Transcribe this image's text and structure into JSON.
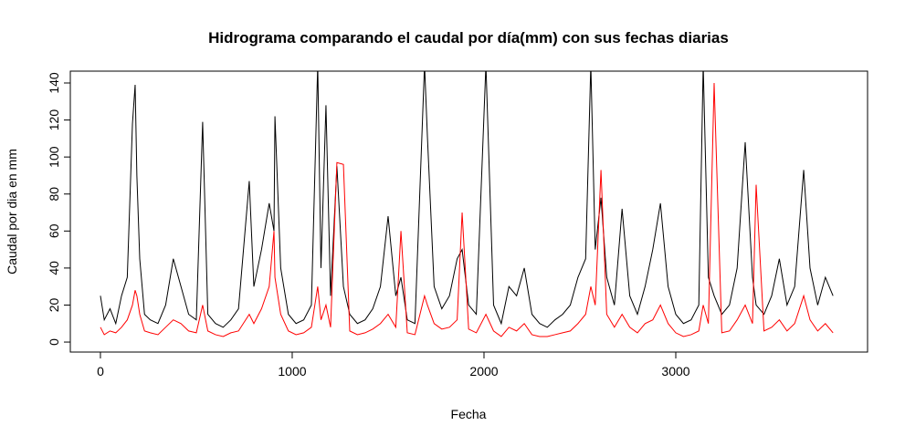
{
  "chart_data": {
    "type": "line",
    "title": "Hidrograma comparando el caudal por día(mm) con sus fechas diarias",
    "x_label": "Fecha",
    "y_label": "Caudal por dia en mm",
    "xlim": [
      -157,
      4000
    ],
    "ylim": [
      -5.4,
      146.4
    ],
    "xticks": [
      0,
      1000,
      2000,
      3000
    ],
    "yticks": [
      0,
      20,
      40,
      60,
      80,
      100,
      120,
      140
    ],
    "x": [
      0,
      20,
      50,
      80,
      110,
      140,
      167,
      181,
      190,
      205,
      230,
      260,
      300,
      340,
      380,
      420,
      460,
      500,
      533,
      560,
      600,
      640,
      680,
      720,
      776,
      800,
      840,
      880,
      905,
      910,
      940,
      980,
      1020,
      1060,
      1100,
      1133,
      1150,
      1176,
      1200,
      1233,
      1267,
      1300,
      1340,
      1380,
      1420,
      1460,
      1500,
      1540,
      1567,
      1600,
      1640,
      1690,
      1705,
      1740,
      1780,
      1820,
      1860,
      1886,
      1920,
      1960,
      2010,
      2050,
      2090,
      2130,
      2170,
      2210,
      2250,
      2290,
      2330,
      2370,
      2410,
      2450,
      2490,
      2530,
      2557,
      2580,
      2610,
      2640,
      2680,
      2720,
      2760,
      2800,
      2840,
      2880,
      2920,
      2960,
      3000,
      3040,
      3080,
      3120,
      3143,
      3170,
      3200,
      3240,
      3280,
      3320,
      3362,
      3400,
      3419,
      3460,
      3500,
      3540,
      3580,
      3620,
      3667,
      3700,
      3740,
      3780,
      3820
    ],
    "series": [
      {
        "color": "#000000",
        "values": [
          25,
          12,
          18,
          10,
          25,
          35,
          118,
          139,
          90,
          45,
          15,
          12,
          10,
          20,
          45,
          30,
          15,
          12,
          119,
          15,
          10,
          8,
          12,
          18,
          87,
          30,
          50,
          75,
          60,
          122,
          40,
          15,
          10,
          12,
          20,
          150,
          40,
          128,
          25,
          95,
          30,
          15,
          10,
          12,
          18,
          30,
          68,
          25,
          35,
          12,
          10,
          150,
          111,
          30,
          18,
          25,
          45,
          50,
          20,
          15,
          150,
          20,
          10,
          30,
          25,
          40,
          15,
          10,
          8,
          12,
          15,
          20,
          35,
          45,
          150,
          50,
          78,
          35,
          20,
          72,
          25,
          15,
          30,
          50,
          75,
          30,
          15,
          10,
          12,
          20,
          150,
          35,
          25,
          15,
          20,
          40,
          108,
          35,
          20,
          15,
          25,
          45,
          20,
          30,
          93,
          40,
          20,
          35,
          25
        ]
      },
      {
        "color": "#ff0000",
        "values": [
          8,
          4,
          6,
          5,
          8,
          12,
          20,
          28,
          25,
          15,
          6,
          5,
          4,
          8,
          12,
          10,
          6,
          5,
          20,
          6,
          4,
          3,
          5,
          6,
          15,
          10,
          18,
          30,
          60,
          35,
          15,
          6,
          4,
          5,
          8,
          30,
          12,
          20,
          8,
          97,
          96,
          6,
          4,
          5,
          7,
          10,
          15,
          8,
          60,
          5,
          4,
          25,
          20,
          10,
          7,
          8,
          12,
          70,
          7,
          5,
          15,
          6,
          3,
          8,
          6,
          10,
          4,
          3,
          3,
          4,
          5,
          6,
          10,
          15,
          30,
          20,
          93,
          15,
          8,
          15,
          8,
          5,
          10,
          12,
          20,
          10,
          5,
          3,
          4,
          6,
          20,
          10,
          140,
          5,
          6,
          12,
          20,
          10,
          85,
          6,
          8,
          12,
          6,
          10,
          25,
          12,
          6,
          10,
          5
        ]
      }
    ]
  }
}
